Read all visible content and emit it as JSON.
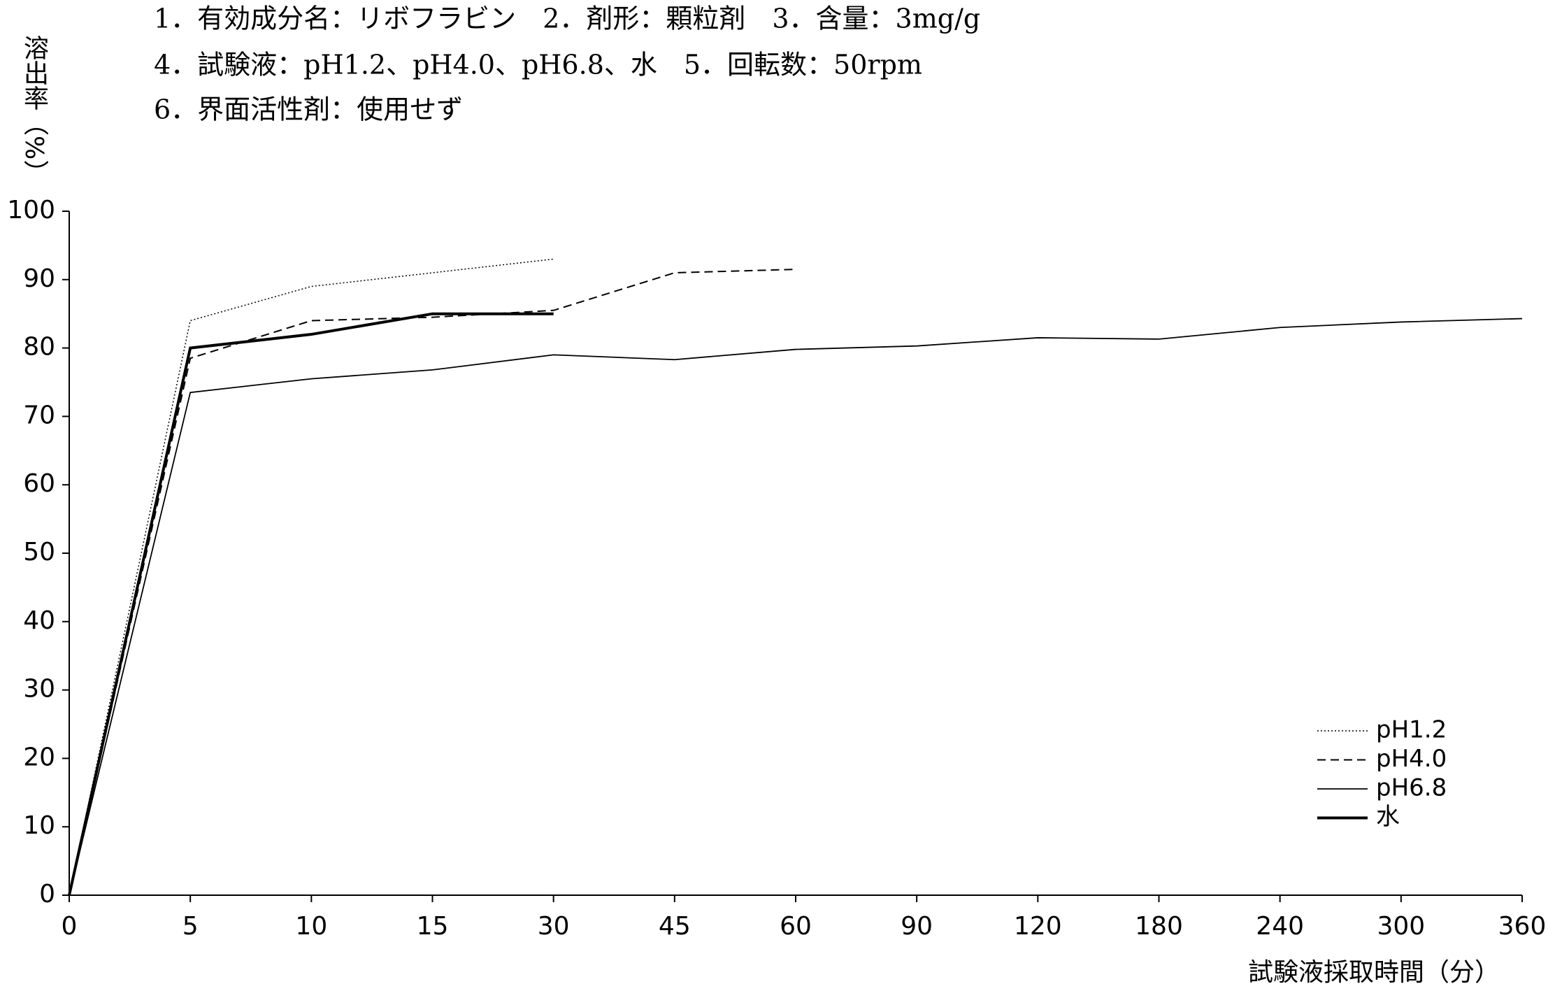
{
  "chart_data": {
    "type": "line",
    "header": [
      "1．有効成分名：リボフラビン　2．剤形：顆粒剤　3．含量：3mg/g",
      "4．試験液：pH1.2、pH4.0、pH6.8、水　5．回転数：50rpm",
      "6．界面活性剤：使用せず"
    ],
    "ylabel": "溶出率（%）",
    "xlabel": "試験液採取時間（分）",
    "categories": [
      "0",
      "5",
      "10",
      "15",
      "30",
      "45",
      "60",
      "90",
      "120",
      "180",
      "240",
      "300",
      "360"
    ],
    "series": [
      {
        "name": "pH1.2",
        "color": "#000000",
        "values": [
          0,
          84,
          89,
          91,
          93,
          null,
          null,
          null,
          null,
          null,
          null,
          null,
          null
        ]
      },
      {
        "name": "pH4.0",
        "color": "#000000",
        "values": [
          0,
          78.5,
          84,
          84.5,
          85.5,
          91,
          91.5,
          null,
          null,
          null,
          null,
          null,
          null
        ]
      },
      {
        "name": "pH6.8",
        "color": "#000000",
        "values": [
          0,
          73.5,
          75.5,
          76.8,
          79,
          78.3,
          79.8,
          80.3,
          81.5,
          81.3,
          83,
          83.8,
          84.3
        ]
      },
      {
        "name": "水",
        "color": "#000000",
        "values": [
          0,
          80,
          82,
          85,
          85,
          null,
          null,
          null,
          null,
          null,
          null,
          null,
          null
        ]
      }
    ],
    "ylim": [
      0,
      100
    ],
    "yticks": [
      0,
      10,
      20,
      30,
      40,
      50,
      60,
      70,
      80,
      90,
      100
    ],
    "legend": "lower right",
    "grid": false
  }
}
